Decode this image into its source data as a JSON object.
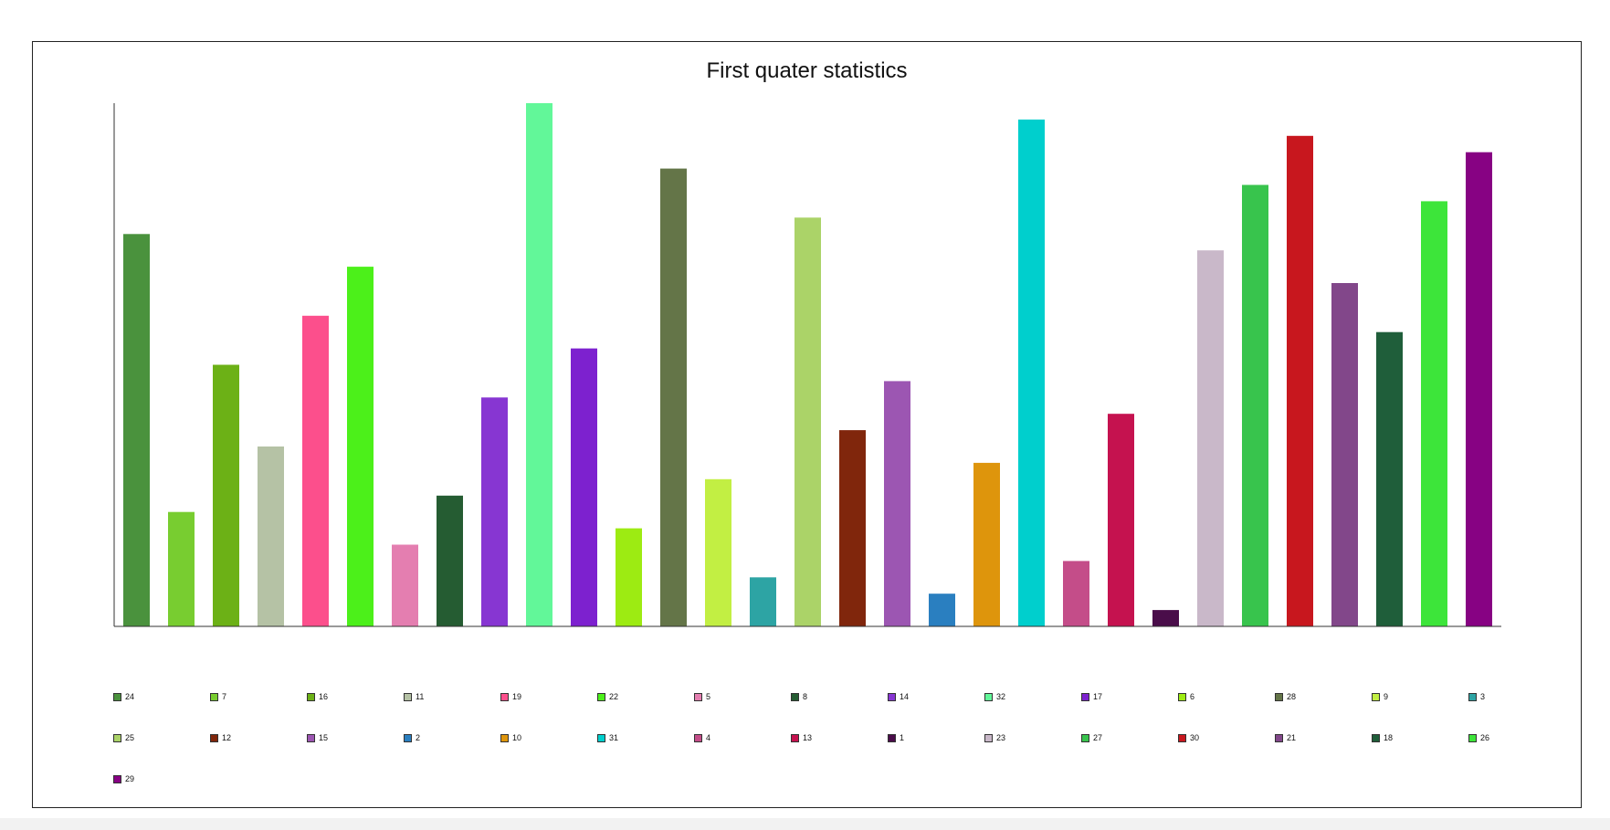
{
  "chart_data": {
    "type": "bar",
    "title": "First quater statistics",
    "xlabel": "",
    "ylabel": "",
    "ylim": [
      0,
      32
    ],
    "grid": false,
    "legend_position": "bottom",
    "categories": [
      "24",
      "7",
      "16",
      "11",
      "19",
      "22",
      "5",
      "8",
      "14",
      "32",
      "17",
      "6",
      "28",
      "9",
      "3",
      "25",
      "12",
      "15",
      "2",
      "10",
      "31",
      "4",
      "13",
      "1",
      "23",
      "27",
      "30",
      "21",
      "18",
      "26",
      "29"
    ],
    "values": [
      24,
      7,
      16,
      11,
      19,
      22,
      5,
      8,
      14,
      32,
      17,
      6,
      28,
      9,
      3,
      25,
      12,
      15,
      2,
      10,
      31,
      4,
      13,
      1,
      23,
      27,
      30,
      21,
      18,
      26,
      29
    ],
    "colors": [
      "#4a923d",
      "#78cd30",
      "#6cb116",
      "#b5c2a5",
      "#fc4f8c",
      "#4cf01a",
      "#e47eb0",
      "#255c32",
      "#8736d2",
      "#62f799",
      "#7d21cf",
      "#9deb12",
      "#647548",
      "#c2ef43",
      "#2da4a4",
      "#abd368",
      "#80260c",
      "#9c56b2",
      "#2a7fc0",
      "#de950c",
      "#00cfcd",
      "#c44d89",
      "#c5124f",
      "#4a0d4a",
      "#c9b8c9",
      "#38c44d",
      "#c8171e",
      "#82478a",
      "#1f5e3a",
      "#3de53a",
      "#870283"
    ]
  }
}
